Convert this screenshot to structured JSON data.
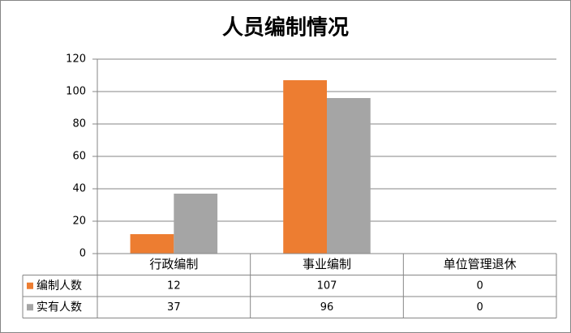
{
  "chart_data": {
    "type": "bar",
    "title": "人员编制情况",
    "categories": [
      "行政编制",
      "事业编制",
      "单位管理退休"
    ],
    "series": [
      {
        "name": "编制人数",
        "color": "#ed7d31",
        "values": [
          12,
          107,
          0
        ]
      },
      {
        "name": "实有人数",
        "color": "#a5a5a5",
        "values": [
          37,
          96,
          0
        ]
      }
    ],
    "ylim": [
      0,
      120
    ],
    "yticks": [
      0,
      20,
      40,
      60,
      80,
      100,
      120
    ],
    "grid": true
  }
}
